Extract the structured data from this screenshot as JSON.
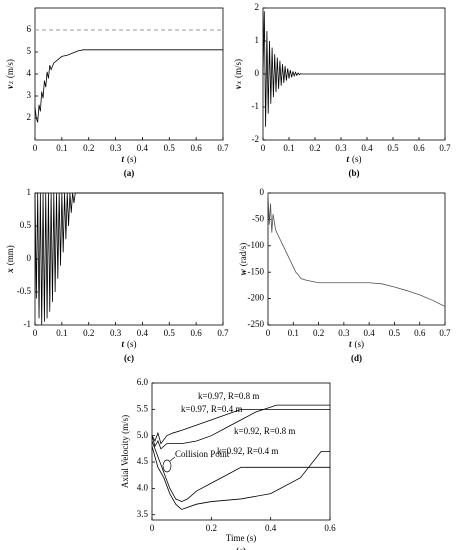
{
  "chart_data": [
    {
      "type": "line",
      "panel_label": "(a)",
      "xlabel": {
        "symbol": "t",
        "unit": "(s)"
      },
      "ylabel": {
        "symbol": "v",
        "subscript": "z",
        "unit": "(m/s)"
      },
      "xlim": [
        0,
        0.7
      ],
      "xticks": [
        0,
        0.1,
        0.2,
        0.3,
        0.4,
        0.5,
        0.6,
        0.7
      ],
      "ylim": [
        1,
        7
      ],
      "yticks": [
        2,
        3,
        4,
        5,
        6
      ],
      "x": [
        0,
        0.005,
        0.01,
        0.015,
        0.02,
        0.025,
        0.03,
        0.035,
        0.04,
        0.045,
        0.05,
        0.055,
        0.06,
        0.07,
        0.08,
        0.09,
        0.1,
        0.12,
        0.14,
        0.16,
        0.18,
        0.2,
        0.3,
        0.4,
        0.5,
        0.6,
        0.7
      ],
      "values": [
        2.5,
        2.0,
        1.8,
        2.6,
        2.3,
        3.2,
        2.9,
        3.7,
        3.4,
        4.1,
        3.8,
        4.4,
        4.2,
        4.5,
        4.6,
        4.7,
        4.8,
        4.85,
        4.95,
        5.05,
        5.1,
        5.1,
        5.1,
        5.1,
        5.1,
        5.1,
        5.1
      ],
      "color": "#000000",
      "hline": 6,
      "hline_color": "#999999"
    },
    {
      "type": "line",
      "panel_label": "(b)",
      "xlabel": {
        "symbol": "t",
        "unit": "(s)"
      },
      "ylabel": {
        "symbol": "v",
        "subscript": "x",
        "unit": "(m/s)"
      },
      "xlim": [
        0,
        0.7
      ],
      "xticks": [
        0,
        0.1,
        0.2,
        0.3,
        0.4,
        0.5,
        0.6,
        0.7
      ],
      "ylim": [
        -2,
        2
      ],
      "yticks": [
        -2,
        -1,
        0,
        1,
        2
      ],
      "x": [
        0,
        0.005,
        0.01,
        0.015,
        0.02,
        0.025,
        0.03,
        0.035,
        0.04,
        0.045,
        0.05,
        0.055,
        0.06,
        0.065,
        0.07,
        0.075,
        0.08,
        0.085,
        0.09,
        0.095,
        0.1,
        0.105,
        0.11,
        0.115,
        0.12,
        0.125,
        0.13,
        0.135,
        0.14,
        0.145,
        0.15,
        0.7
      ],
      "values": [
        0,
        1.9,
        -1.6,
        1.3,
        -1.2,
        1.0,
        -0.9,
        0.8,
        -0.7,
        0.6,
        -0.55,
        0.5,
        -0.45,
        0.4,
        -0.35,
        0.3,
        -0.27,
        0.24,
        -0.2,
        0.17,
        -0.14,
        0.12,
        -0.1,
        0.08,
        -0.06,
        0.05,
        -0.04,
        0.03,
        -0.02,
        0.01,
        0,
        0
      ],
      "color": "#000000"
    },
    {
      "type": "line",
      "panel_label": "(c)",
      "xlabel": {
        "symbol": "t",
        "unit": "(s)"
      },
      "ylabel": {
        "symbol": "x",
        "unit": "(mm)"
      },
      "xlim": [
        0,
        0.7
      ],
      "xticks": [
        0,
        0.1,
        0.2,
        0.3,
        0.4,
        0.5,
        0.6,
        0.7
      ],
      "ylim": [
        -1,
        1
      ],
      "yticks": [
        -1,
        -0.5,
        0,
        0.5,
        1
      ],
      "x": [
        0,
        0.005,
        0.01,
        0.015,
        0.02,
        0.025,
        0.03,
        0.035,
        0.04,
        0.045,
        0.05,
        0.055,
        0.06,
        0.065,
        0.07,
        0.075,
        0.08,
        0.085,
        0.09,
        0.095,
        0.1,
        0.105,
        0.11,
        0.115,
        0.12,
        0.125,
        0.13,
        0.135,
        0.14,
        0.145,
        0.15,
        0.7
      ],
      "values": [
        1,
        -0.6,
        1,
        -0.9,
        1,
        -1,
        1,
        -0.95,
        1,
        -0.9,
        1,
        -0.8,
        1,
        -0.65,
        1,
        -0.5,
        1,
        -0.3,
        1,
        -0.1,
        1,
        0.1,
        1,
        0.3,
        1,
        0.5,
        1,
        0.7,
        1,
        0.85,
        1,
        1
      ],
      "color": "#000000"
    },
    {
      "type": "line",
      "panel_label": "(d)",
      "xlabel": {
        "symbol": "t",
        "unit": "(s)"
      },
      "ylabel": {
        "symbol": "w",
        "unit": "(rad/s)"
      },
      "xlim": [
        0,
        0.7
      ],
      "xticks": [
        0,
        0.1,
        0.2,
        0.3,
        0.4,
        0.5,
        0.6,
        0.7
      ],
      "ylim": [
        -250,
        0
      ],
      "yticks": [
        -250,
        -200,
        -150,
        -100,
        -50,
        0
      ],
      "x": [
        0,
        0.005,
        0.01,
        0.015,
        0.02,
        0.03,
        0.04,
        0.05,
        0.06,
        0.07,
        0.08,
        0.09,
        0.1,
        0.11,
        0.12,
        0.13,
        0.15,
        0.2,
        0.3,
        0.4,
        0.45,
        0.5,
        0.55,
        0.6,
        0.65,
        0.7
      ],
      "values": [
        0,
        -60,
        -20,
        -75,
        -40,
        -70,
        -80,
        -90,
        -100,
        -110,
        -120,
        -130,
        -140,
        -150,
        -155,
        -162,
        -165,
        -170,
        -170,
        -170,
        -172,
        -178,
        -185,
        -193,
        -203,
        -215
      ],
      "color": "#555555"
    },
    {
      "type": "multiline",
      "panel_label": "(e)",
      "xlabel": "Time (s)",
      "ylabel": "Axial Velocity (m/s)",
      "annotation": "Collision Point",
      "xlim": [
        0,
        0.6
      ],
      "xticks": [
        0,
        0.2,
        0.4,
        0.6
      ],
      "ylim": [
        3.4,
        6.0
      ],
      "yticks": [
        3.5,
        {
          "value": 4,
          "label": "4.0"
        },
        4.5,
        {
          "value": 5,
          "label": "5.0"
        },
        5.5,
        {
          "value": 6,
          "label": "6.0"
        }
      ],
      "series": [
        {
          "name": "k=0.97, R=0.8 m",
          "color": "#000000",
          "x": [
            0,
            0.01,
            0.02,
            0.03,
            0.05,
            0.07,
            0.1,
            0.15,
            0.2,
            0.25,
            0.3,
            0.4,
            0.6
          ],
          "values": [
            5.0,
            4.9,
            5.05,
            4.85,
            5.0,
            5.05,
            5.1,
            5.2,
            5.3,
            5.4,
            5.5,
            5.5,
            5.5
          ]
        },
        {
          "name": "k=0.97, R=0.4 m",
          "color": "#000000",
          "x": [
            0,
            0.01,
            0.02,
            0.03,
            0.05,
            0.07,
            0.1,
            0.15,
            0.2,
            0.25,
            0.3,
            0.35,
            0.42,
            0.6
          ],
          "values": [
            5.0,
            4.8,
            4.9,
            4.75,
            4.85,
            4.85,
            4.85,
            4.9,
            5.0,
            5.15,
            5.3,
            5.45,
            5.58,
            5.58
          ]
        },
        {
          "name": "k=0.92, R=0.8 m",
          "color": "#000000",
          "x": [
            0,
            0.02,
            0.04,
            0.06,
            0.08,
            0.1,
            0.12,
            0.15,
            0.2,
            0.25,
            0.3,
            0.6
          ],
          "values": [
            4.9,
            4.6,
            4.3,
            4.0,
            3.8,
            3.75,
            3.8,
            3.95,
            4.1,
            4.25,
            4.4,
            4.4
          ]
        },
        {
          "name": "k=0.92, R=0.4 m",
          "color": "#000000",
          "x": [
            0,
            0.02,
            0.04,
            0.06,
            0.08,
            0.1,
            0.15,
            0.2,
            0.3,
            0.4,
            0.5,
            0.57,
            0.6
          ],
          "values": [
            4.8,
            4.4,
            4.2,
            3.9,
            3.7,
            3.6,
            3.7,
            3.75,
            3.8,
            3.9,
            4.2,
            4.7,
            4.7
          ]
        }
      ]
    }
  ]
}
